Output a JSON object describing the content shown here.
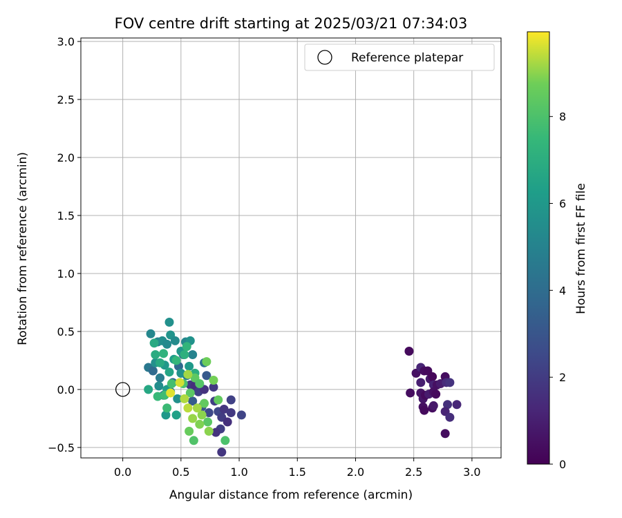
{
  "chart_data": {
    "type": "scatter",
    "title": "FOV centre drift starting at 2025/03/21 07:34:03",
    "xlabel": "Angular distance from reference (arcmin)",
    "ylabel": "Rotation from reference (arcmin)",
    "xlim": [
      -0.36,
      3.25
    ],
    "ylim": [
      -0.59,
      3.03
    ],
    "x_ticks": [
      0.0,
      0.5,
      1.0,
      1.5,
      2.0,
      2.5,
      3.0
    ],
    "y_ticks": [
      -0.5,
      0.0,
      0.5,
      1.0,
      1.5,
      2.0,
      2.5,
      3.0
    ],
    "grid": true,
    "legend_position": "top-right",
    "reference": {
      "label": "Reference platepar",
      "x": 0.0,
      "y": 0.0
    },
    "colorbar": {
      "label": "Hours from first FF file",
      "min": 0,
      "max": 9.95,
      "ticks": [
        0,
        2,
        4,
        6,
        8
      ],
      "colormap": "viridis"
    },
    "points": [
      [
        2.46,
        0.33,
        0.3
      ],
      [
        2.52,
        0.14,
        0.5
      ],
      [
        2.47,
        -0.03,
        0.4
      ],
      [
        2.56,
        0.19,
        1.2
      ],
      [
        2.59,
        0.16,
        0.4
      ],
      [
        2.56,
        0.06,
        1.0
      ],
      [
        2.62,
        0.16,
        0.3
      ],
      [
        2.64,
        0.09,
        0.8
      ],
      [
        2.66,
        0.11,
        0.2
      ],
      [
        2.67,
        0.04,
        1.1
      ],
      [
        2.7,
        0.04,
        0.5
      ],
      [
        2.73,
        0.05,
        0.9
      ],
      [
        2.77,
        0.11,
        0.4
      ],
      [
        2.78,
        0.06,
        1.4
      ],
      [
        2.81,
        0.06,
        1.7
      ],
      [
        2.56,
        -0.03,
        0.6
      ],
      [
        2.58,
        -0.08,
        0.7
      ],
      [
        2.6,
        -0.05,
        0.3
      ],
      [
        2.63,
        -0.04,
        0.9
      ],
      [
        2.67,
        -0.02,
        0.5
      ],
      [
        2.69,
        -0.04,
        0.3
      ],
      [
        2.58,
        -0.15,
        0.5
      ],
      [
        2.59,
        -0.18,
        0.3
      ],
      [
        2.66,
        -0.16,
        0.4
      ],
      [
        2.67,
        -0.14,
        0.8
      ],
      [
        2.79,
        -0.13,
        1.6
      ],
      [
        2.87,
        -0.13,
        1.3
      ],
      [
        2.77,
        -0.19,
        1.2
      ],
      [
        2.81,
        -0.24,
        1.5
      ],
      [
        2.77,
        -0.38,
        0.4
      ],
      [
        0.58,
        0.04,
        1.9
      ],
      [
        0.62,
        0.03,
        1.6
      ],
      [
        0.65,
        -0.02,
        2.2
      ],
      [
        0.7,
        0.0,
        1.7
      ],
      [
        0.78,
        0.02,
        1.9
      ],
      [
        0.79,
        -0.1,
        2.1
      ],
      [
        0.82,
        -0.19,
        2.4
      ],
      [
        0.85,
        -0.24,
        2.0
      ],
      [
        0.87,
        -0.17,
        1.8
      ],
      [
        0.93,
        -0.09,
        2.2
      ],
      [
        0.93,
        -0.2,
        1.9
      ],
      [
        1.02,
        -0.22,
        2.3
      ],
      [
        0.9,
        -0.28,
        1.6
      ],
      [
        0.84,
        -0.34,
        2.1
      ],
      [
        0.8,
        -0.37,
        1.7
      ],
      [
        0.85,
        -0.54,
        1.8
      ],
      [
        0.74,
        -0.2,
        2.5
      ],
      [
        0.68,
        -0.15,
        3.0
      ],
      [
        0.6,
        -0.1,
        3.3
      ],
      [
        0.72,
        0.12,
        3.2
      ],
      [
        0.52,
        0.3,
        3.7
      ],
      [
        0.48,
        0.2,
        3.9
      ],
      [
        0.43,
        0.06,
        3.8
      ],
      [
        0.35,
        -0.05,
        4.1
      ],
      [
        0.41,
        -0.02,
        4.4
      ],
      [
        0.22,
        0.19,
        4.5
      ],
      [
        0.26,
        0.16,
        3.9
      ],
      [
        0.7,
        0.23,
        4.3
      ],
      [
        0.55,
        0.12,
        4.6
      ],
      [
        0.32,
        0.1,
        4.7
      ],
      [
        0.24,
        0.48,
        5.2
      ],
      [
        0.3,
        0.41,
        5.0
      ],
      [
        0.34,
        0.42,
        5.5
      ],
      [
        0.38,
        0.39,
        5.3
      ],
      [
        0.41,
        0.47,
        5.8
      ],
      [
        0.4,
        0.58,
        5.6
      ],
      [
        0.45,
        0.42,
        5.4
      ],
      [
        0.5,
        0.33,
        5.9
      ],
      [
        0.54,
        0.41,
        5.2
      ],
      [
        0.58,
        0.42,
        5.7
      ],
      [
        0.6,
        0.3,
        5.0
      ],
      [
        0.28,
        0.23,
        5.6
      ],
      [
        0.36,
        0.21,
        6.0
      ],
      [
        0.44,
        0.26,
        6.2
      ],
      [
        0.5,
        0.14,
        5.7
      ],
      [
        0.57,
        0.2,
        6.1
      ],
      [
        0.31,
        0.03,
        5.5
      ],
      [
        0.38,
        0.0,
        6.2
      ],
      [
        0.47,
        -0.08,
        5.6
      ],
      [
        0.37,
        -0.22,
        6.0
      ],
      [
        0.46,
        -0.22,
        6.4
      ],
      [
        0.22,
        0.0,
        6.7
      ],
      [
        0.28,
        0.3,
        6.9
      ],
      [
        0.35,
        0.31,
        7.2
      ],
      [
        0.32,
        0.23,
        6.8
      ],
      [
        0.4,
        0.15,
        6.6
      ],
      [
        0.46,
        0.25,
        7.4
      ],
      [
        0.53,
        0.3,
        7.1
      ],
      [
        0.55,
        0.37,
        7.3
      ],
      [
        0.62,
        0.14,
        7.0
      ],
      [
        0.27,
        0.4,
        6.8
      ],
      [
        0.3,
        -0.06,
        7.5
      ],
      [
        0.36,
        -0.05,
        7.7
      ],
      [
        0.42,
        0.05,
        7.8
      ],
      [
        0.38,
        -0.16,
        7.6
      ],
      [
        0.52,
        0.05,
        8.0
      ],
      [
        0.58,
        -0.03,
        8.3
      ],
      [
        0.62,
        0.1,
        8.4
      ],
      [
        0.66,
        0.05,
        8.2
      ],
      [
        0.7,
        -0.12,
        8.5
      ],
      [
        0.73,
        -0.28,
        8.3
      ],
      [
        0.57,
        -0.36,
        8.6
      ],
      [
        0.61,
        -0.44,
        8.1
      ],
      [
        0.88,
        -0.44,
        8.0
      ],
      [
        0.72,
        0.24,
        8.7
      ],
      [
        0.78,
        0.08,
        8.8
      ],
      [
        0.82,
        -0.09,
        8.5
      ],
      [
        0.68,
        -0.22,
        9.0
      ],
      [
        0.6,
        -0.25,
        9.1
      ],
      [
        0.64,
        -0.16,
        9.2
      ],
      [
        0.56,
        -0.16,
        9.4
      ],
      [
        0.53,
        -0.08,
        9.3
      ],
      [
        0.49,
        0.06,
        9.6
      ],
      [
        0.41,
        -0.03,
        9.7
      ],
      [
        0.56,
        0.13,
        9.2
      ],
      [
        0.74,
        -0.36,
        9.0
      ],
      [
        0.66,
        -0.3,
        8.9
      ]
    ]
  }
}
